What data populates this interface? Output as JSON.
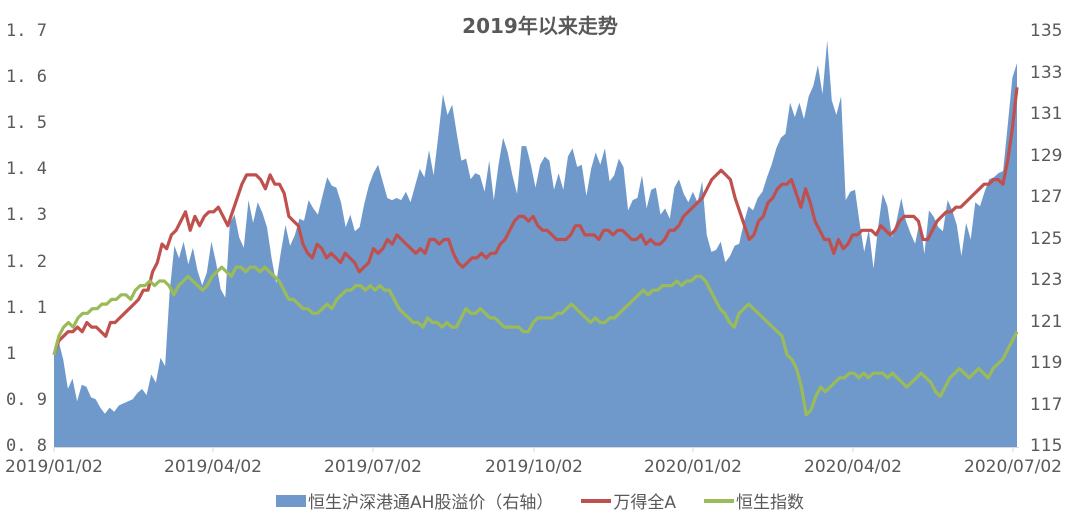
{
  "chart_data": {
    "type": "area+line",
    "title": "2019年以来走势",
    "x_ticks": [
      "2019/01/02",
      "2019/04/02",
      "2019/07/02",
      "2019/10/02",
      "2020/01/02",
      "2020/04/02",
      "2020/07/02"
    ],
    "y_left": {
      "ticks": [
        "1.7",
        "1.6",
        "1.5",
        "1.4",
        "1.3",
        "1.2",
        "1.1",
        "1",
        "0.9",
        "0.8"
      ],
      "min": 0.8,
      "max": 1.7
    },
    "y_right": {
      "ticks": [
        "135",
        "133",
        "131",
        "129",
        "127",
        "125",
        "123",
        "121",
        "119",
        "117",
        "115"
      ],
      "min": 115,
      "max": 135
    },
    "legend": [
      "恒生沪深港通AH股溢价（右轴）",
      "万得全A",
      "恒生指数"
    ],
    "colors": {
      "area": "#7099CB",
      "wind_a": "#C0504D",
      "hsi": "#9BBB59"
    },
    "series": [
      {
        "name": "恒生沪深港通AH股溢价（右轴）",
        "axis": "right",
        "type": "area",
        "values": [
          119.5,
          120.1,
          119.2,
          117.8,
          118.3,
          117.2,
          118.0,
          117.9,
          117.4,
          117.3,
          116.9,
          116.6,
          116.9,
          116.7,
          117.0,
          117.1,
          117.2,
          117.3,
          117.6,
          117.8,
          117.5,
          118.5,
          118.1,
          119.3,
          118.9,
          122.5,
          124.7,
          124.1,
          124.9,
          123.8,
          124.6,
          123.5,
          122.8,
          123.4,
          124.9,
          123.9,
          122.6,
          122.2,
          125.8,
          126.2,
          125.1,
          124.6,
          126.9,
          125.8,
          126.8,
          126.3,
          125.6,
          124.1,
          122.9,
          124.4,
          125.7,
          124.7,
          125.2,
          126.0,
          125.9,
          126.9,
          126.5,
          126.2,
          127.1,
          128.0,
          127.6,
          127.5,
          126.8,
          125.6,
          126.2,
          125.4,
          125.6,
          126.7,
          127.6,
          128.2,
          128.6,
          127.8,
          127.0,
          126.9,
          127.0,
          126.9,
          127.3,
          126.8,
          127.6,
          128.4,
          128.0,
          129.3,
          128.1,
          130.0,
          132.0,
          131.0,
          131.5,
          130.1,
          128.8,
          128.9,
          127.9,
          128.2,
          128.1,
          127.3,
          128.8,
          126.9,
          128.6,
          129.9,
          129.2,
          128.1,
          127.2,
          129.5,
          129.5,
          128.6,
          127.5,
          128.6,
          129.0,
          128.8,
          127.4,
          128.2,
          127.4,
          129.0,
          129.4,
          128.5,
          128.6,
          127.1,
          128.4,
          129.2,
          128.6,
          129.4,
          127.8,
          128.1,
          128.9,
          128.5,
          126.4,
          126.9,
          127.0,
          128.1,
          126.5,
          127.4,
          127.5,
          126.2,
          126.5,
          126.0,
          127.5,
          127.9,
          127.2,
          126.8,
          127.3,
          126.8,
          127.8,
          125.2,
          124.4,
          124.5,
          124.9,
          123.9,
          124.2,
          124.7,
          124.8,
          125.8,
          126.6,
          126.4,
          127.0,
          127.3,
          128.0,
          128.6,
          129.4,
          129.9,
          130.1,
          131.6,
          130.9,
          131.6,
          130.8,
          131.9,
          132.4,
          133.4,
          132.0,
          134.6,
          131.7,
          131.0,
          131.9,
          126.9,
          127.3,
          127.4,
          125.8,
          124.4,
          125.5,
          123.6,
          125.6,
          127.2,
          126.6,
          125.1,
          125.9,
          127.0,
          125.9,
          125.3,
          124.8,
          125.9,
          124.3,
          126.4,
          126.1,
          125.6,
          125.4,
          126.9,
          126.4,
          125.7,
          124.2,
          125.8,
          125.0,
          126.8,
          126.6,
          127.3,
          127.9,
          128.0,
          128.2,
          128.3,
          130.5,
          132.8,
          133.5
        ]
      },
      {
        "name": "万得全A",
        "axis": "left",
        "type": "line",
        "values": [
          1.0,
          1.03,
          1.04,
          1.05,
          1.05,
          1.06,
          1.05,
          1.07,
          1.06,
          1.06,
          1.05,
          1.04,
          1.07,
          1.07,
          1.08,
          1.09,
          1.1,
          1.11,
          1.12,
          1.14,
          1.14,
          1.18,
          1.2,
          1.24,
          1.23,
          1.26,
          1.27,
          1.29,
          1.31,
          1.27,
          1.3,
          1.28,
          1.3,
          1.31,
          1.31,
          1.32,
          1.3,
          1.28,
          1.31,
          1.34,
          1.37,
          1.39,
          1.39,
          1.39,
          1.38,
          1.36,
          1.39,
          1.37,
          1.37,
          1.35,
          1.3,
          1.29,
          1.28,
          1.24,
          1.22,
          1.21,
          1.24,
          1.23,
          1.21,
          1.22,
          1.21,
          1.2,
          1.22,
          1.21,
          1.2,
          1.18,
          1.19,
          1.2,
          1.23,
          1.22,
          1.23,
          1.25,
          1.24,
          1.26,
          1.25,
          1.24,
          1.23,
          1.22,
          1.23,
          1.22,
          1.25,
          1.25,
          1.24,
          1.25,
          1.25,
          1.22,
          1.2,
          1.19,
          1.2,
          1.21,
          1.21,
          1.22,
          1.21,
          1.22,
          1.22,
          1.24,
          1.25,
          1.27,
          1.29,
          1.3,
          1.3,
          1.29,
          1.3,
          1.28,
          1.27,
          1.27,
          1.26,
          1.25,
          1.25,
          1.25,
          1.26,
          1.28,
          1.28,
          1.26,
          1.26,
          1.26,
          1.25,
          1.27,
          1.27,
          1.26,
          1.27,
          1.27,
          1.26,
          1.25,
          1.25,
          1.26,
          1.24,
          1.25,
          1.24,
          1.24,
          1.25,
          1.27,
          1.27,
          1.28,
          1.3,
          1.31,
          1.32,
          1.33,
          1.34,
          1.36,
          1.38,
          1.39,
          1.4,
          1.39,
          1.38,
          1.34,
          1.31,
          1.28,
          1.25,
          1.26,
          1.29,
          1.3,
          1.33,
          1.34,
          1.36,
          1.37,
          1.37,
          1.38,
          1.35,
          1.32,
          1.36,
          1.33,
          1.29,
          1.27,
          1.25,
          1.25,
          1.22,
          1.25,
          1.23,
          1.24,
          1.26,
          1.26,
          1.27,
          1.27,
          1.27,
          1.26,
          1.28,
          1.27,
          1.26,
          1.27,
          1.29,
          1.3,
          1.3,
          1.3,
          1.29,
          1.25,
          1.25,
          1.27,
          1.29,
          1.3,
          1.31,
          1.31,
          1.32,
          1.32,
          1.33,
          1.34,
          1.35,
          1.36,
          1.37,
          1.37,
          1.38,
          1.38,
          1.37,
          1.42,
          1.49,
          1.58
        ]
      },
      {
        "name": "恒生指数",
        "axis": "left",
        "type": "line",
        "values": [
          1.0,
          1.04,
          1.06,
          1.07,
          1.06,
          1.08,
          1.09,
          1.09,
          1.1,
          1.1,
          1.11,
          1.11,
          1.12,
          1.12,
          1.13,
          1.13,
          1.12,
          1.14,
          1.15,
          1.15,
          1.16,
          1.15,
          1.16,
          1.16,
          1.15,
          1.13,
          1.15,
          1.16,
          1.17,
          1.16,
          1.15,
          1.14,
          1.15,
          1.17,
          1.18,
          1.19,
          1.18,
          1.17,
          1.19,
          1.19,
          1.18,
          1.19,
          1.19,
          1.18,
          1.19,
          1.18,
          1.17,
          1.16,
          1.14,
          1.12,
          1.12,
          1.11,
          1.1,
          1.1,
          1.09,
          1.09,
          1.1,
          1.11,
          1.1,
          1.12,
          1.13,
          1.14,
          1.14,
          1.15,
          1.15,
          1.14,
          1.15,
          1.14,
          1.15,
          1.14,
          1.14,
          1.12,
          1.1,
          1.09,
          1.08,
          1.07,
          1.07,
          1.06,
          1.08,
          1.07,
          1.07,
          1.06,
          1.07,
          1.06,
          1.06,
          1.08,
          1.1,
          1.09,
          1.09,
          1.1,
          1.09,
          1.08,
          1.08,
          1.07,
          1.06,
          1.06,
          1.06,
          1.06,
          1.05,
          1.05,
          1.07,
          1.08,
          1.08,
          1.08,
          1.08,
          1.09,
          1.09,
          1.1,
          1.11,
          1.1,
          1.09,
          1.08,
          1.07,
          1.08,
          1.07,
          1.07,
          1.08,
          1.08,
          1.09,
          1.1,
          1.11,
          1.12,
          1.13,
          1.14,
          1.13,
          1.14,
          1.14,
          1.15,
          1.15,
          1.15,
          1.16,
          1.15,
          1.16,
          1.16,
          1.17,
          1.17,
          1.16,
          1.14,
          1.12,
          1.1,
          1.09,
          1.07,
          1.06,
          1.09,
          1.1,
          1.11,
          1.1,
          1.09,
          1.08,
          1.07,
          1.06,
          1.05,
          1.04,
          1.0,
          0.99,
          0.97,
          0.93,
          0.87,
          0.88,
          0.91,
          0.93,
          0.92,
          0.93,
          0.94,
          0.95,
          0.95,
          0.96,
          0.96,
          0.95,
          0.96,
          0.95,
          0.96,
          0.96,
          0.96,
          0.95,
          0.96,
          0.95,
          0.94,
          0.93,
          0.94,
          0.95,
          0.96,
          0.95,
          0.94,
          0.92,
          0.91,
          0.93,
          0.95,
          0.96,
          0.97,
          0.96,
          0.95,
          0.96,
          0.97,
          0.96,
          0.95,
          0.97,
          0.98,
          0.99,
          1.01,
          1.03,
          1.05
        ]
      }
    ]
  },
  "legend": {
    "area_label": "恒生沪深港通AH股溢价（右轴）",
    "wind_label": "万得全A",
    "hsi_label": "恒生指数"
  }
}
